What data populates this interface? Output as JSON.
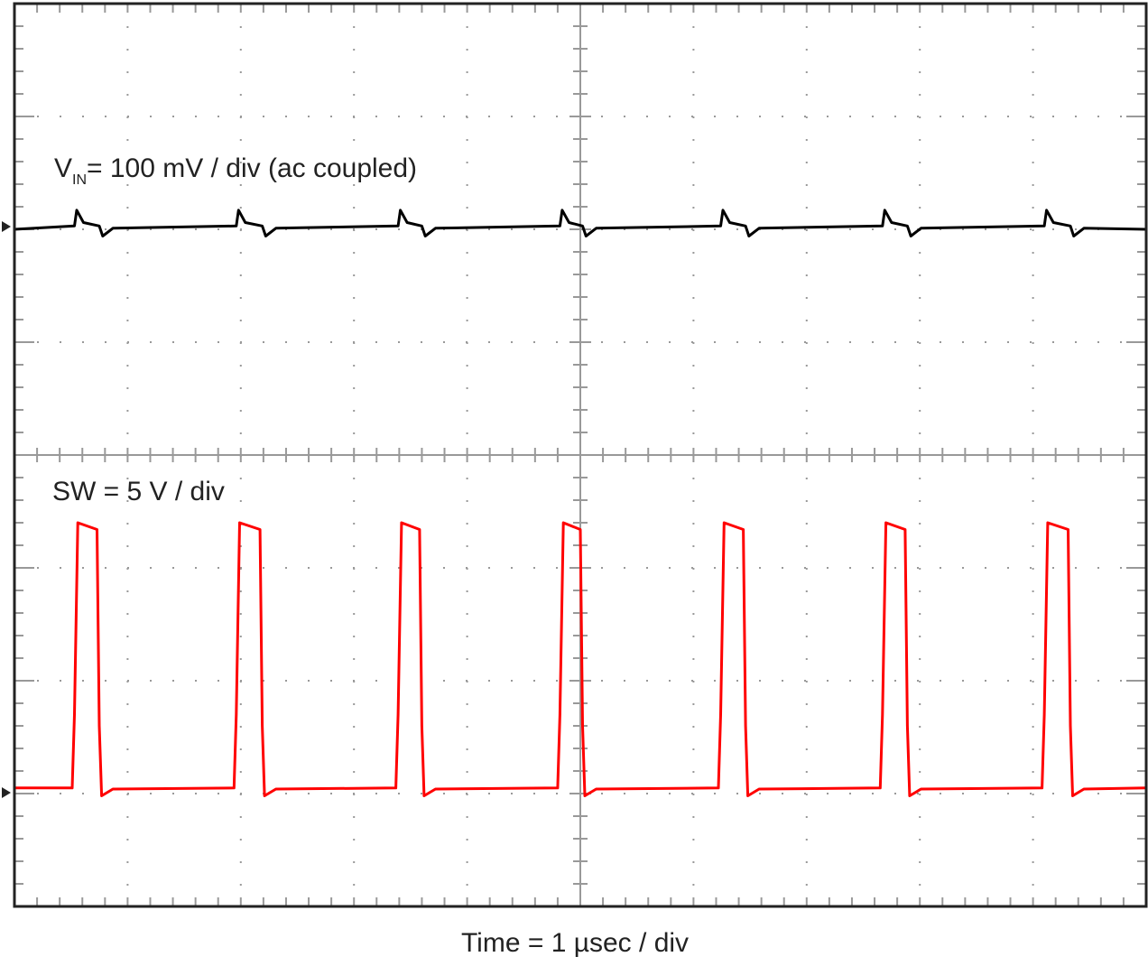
{
  "chart_data": {
    "type": "line",
    "xlabel": "Time = 1 µsec / div",
    "annotations": [
      {
        "main": "V",
        "sub": "IN",
        "text": "= 100 mV / div (ac coupled)"
      },
      {
        "text": "SW = 5 V / div"
      }
    ],
    "xlim": [
      0,
      10
    ],
    "ylim": [
      -4,
      4
    ],
    "xticks": [
      0,
      1,
      2,
      3,
      4,
      5,
      6,
      7,
      8,
      9,
      10
    ],
    "yticks": [
      -4,
      -3,
      -2,
      -1,
      0,
      1,
      2,
      3,
      4
    ],
    "grid": true,
    "series": [
      {
        "color": "#000000",
        "x": [
          0,
          0.53,
          0.55,
          0.61,
          0.75,
          0.78,
          0.87,
          1.96,
          1.98,
          2.04,
          2.19,
          2.22,
          2.31,
          3.39,
          3.41,
          3.47,
          3.6,
          3.63,
          3.72,
          4.82,
          4.84,
          4.9,
          5.02,
          5.05,
          5.14,
          6.24,
          6.26,
          6.32,
          6.46,
          6.49,
          6.58,
          7.67,
          7.69,
          7.75,
          7.89,
          7.92,
          8.01,
          9.1,
          9.12,
          9.18,
          9.33,
          9.36,
          9.45,
          10
        ],
        "values": [
          2.0,
          2.03,
          2.17,
          2.06,
          2.03,
          1.94,
          2.01,
          2.03,
          2.17,
          2.06,
          2.03,
          1.94,
          2.01,
          2.03,
          2.17,
          2.06,
          2.03,
          1.94,
          2.01,
          2.03,
          2.17,
          2.06,
          2.03,
          1.94,
          2.01,
          2.03,
          2.17,
          2.06,
          2.03,
          1.94,
          2.01,
          2.03,
          2.17,
          2.06,
          2.03,
          1.94,
          2.01,
          2.03,
          2.17,
          2.06,
          2.03,
          1.94,
          2.01,
          2.0
        ]
      },
      {
        "color": "#ff0000",
        "x": [
          0,
          0.51,
          0.53,
          0.56,
          0.73,
          0.75,
          0.77,
          0.87,
          1.94,
          1.96,
          1.99,
          2.17,
          2.19,
          2.21,
          2.31,
          3.37,
          3.39,
          3.42,
          3.58,
          3.6,
          3.62,
          3.72,
          4.8,
          4.82,
          4.85,
          5.0,
          5.02,
          5.04,
          5.14,
          6.22,
          6.24,
          6.27,
          6.44,
          6.46,
          6.48,
          6.58,
          7.65,
          7.67,
          7.7,
          7.87,
          7.89,
          7.91,
          8.01,
          9.08,
          9.1,
          9.13,
          9.31,
          9.33,
          9.35,
          9.45,
          10
        ],
        "values": [
          -2.95,
          -2.95,
          -2.3,
          -0.6,
          -0.66,
          -2.4,
          -3.02,
          -2.96,
          -2.95,
          -2.3,
          -0.6,
          -0.66,
          -2.4,
          -3.02,
          -2.96,
          -2.95,
          -2.3,
          -0.6,
          -0.66,
          -2.4,
          -3.02,
          -2.96,
          -2.95,
          -2.3,
          -0.6,
          -0.66,
          -2.4,
          -3.02,
          -2.96,
          -2.95,
          -2.3,
          -0.6,
          -0.66,
          -2.4,
          -3.02,
          -2.96,
          -2.95,
          -2.3,
          -0.6,
          -0.66,
          -2.4,
          -3.02,
          -2.96,
          -2.95,
          -2.3,
          -0.6,
          -0.66,
          -2.4,
          -3.02,
          -2.96,
          -2.95
        ]
      }
    ]
  }
}
